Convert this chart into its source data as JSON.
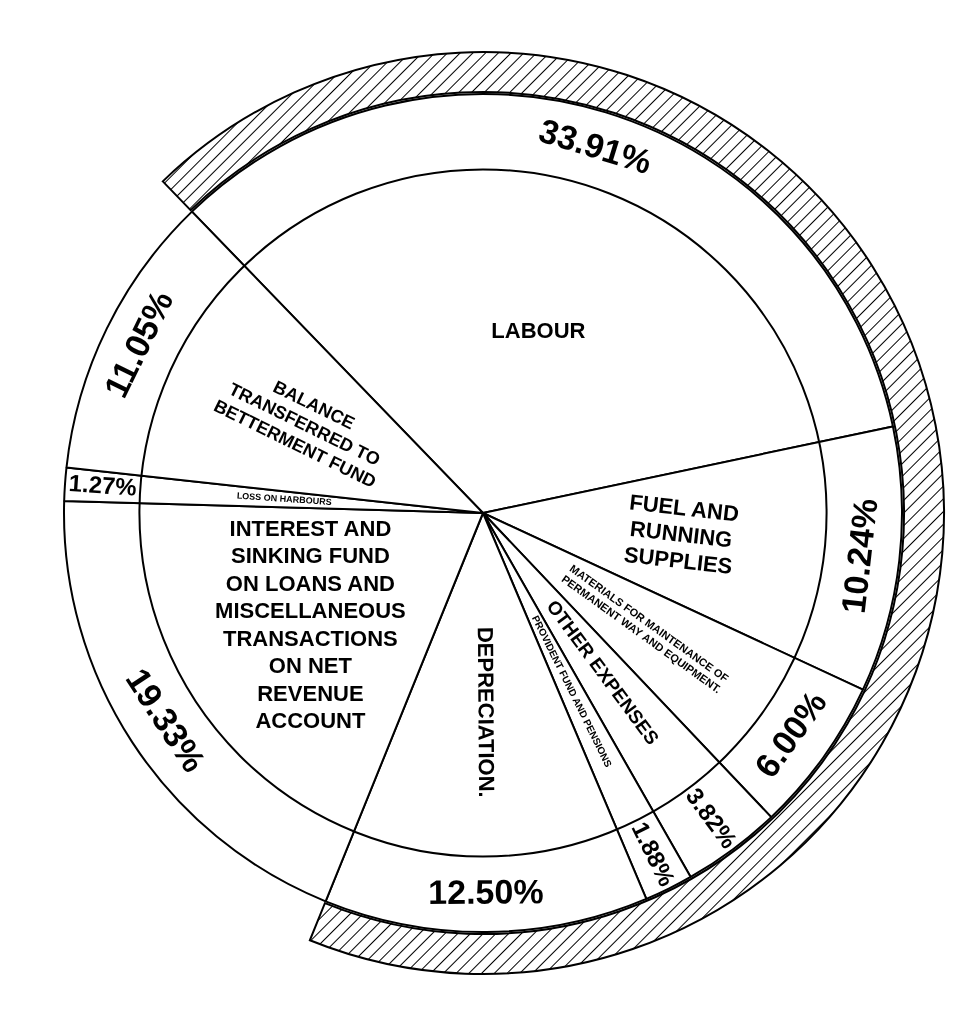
{
  "chart_data": {
    "type": "pie",
    "categories": [
      "LABOUR",
      "FUEL AND RUNNING SUPPLIES",
      "MATERIALS FOR MAINTENANCE OF PERMANENT WAY AND EQUIPMENT.",
      "OTHER EXPENSES",
      "PROVIDENT FUND AND PENSIONS",
      "DEPRECIATION.",
      "INTEREST AND SINKING FUND ON LOANS AND MISCELLANEOUS TRANSACTIONS ON NET REVENUE ACCOUNT",
      "LOSS ON HARBOURS",
      "BALANCE TRANSFERRED TO BETTERMENT FUND"
    ],
    "values": [
      33.91,
      10.24,
      6.0,
      3.82,
      1.88,
      12.5,
      19.33,
      1.27,
      11.05
    ],
    "value_labels": [
      "33.91%",
      "10.24%",
      "6.00%",
      "3.82%",
      "1.88%",
      "12.50%",
      "19.33%",
      "1.27%",
      "11.05%"
    ],
    "colors": [
      "#ffffff",
      "#ffffff",
      "#ffffff",
      "#ffffff",
      "#ffffff",
      "#ffffff",
      "#ffffff",
      "#ffffff",
      "#ffffff"
    ]
  }
}
